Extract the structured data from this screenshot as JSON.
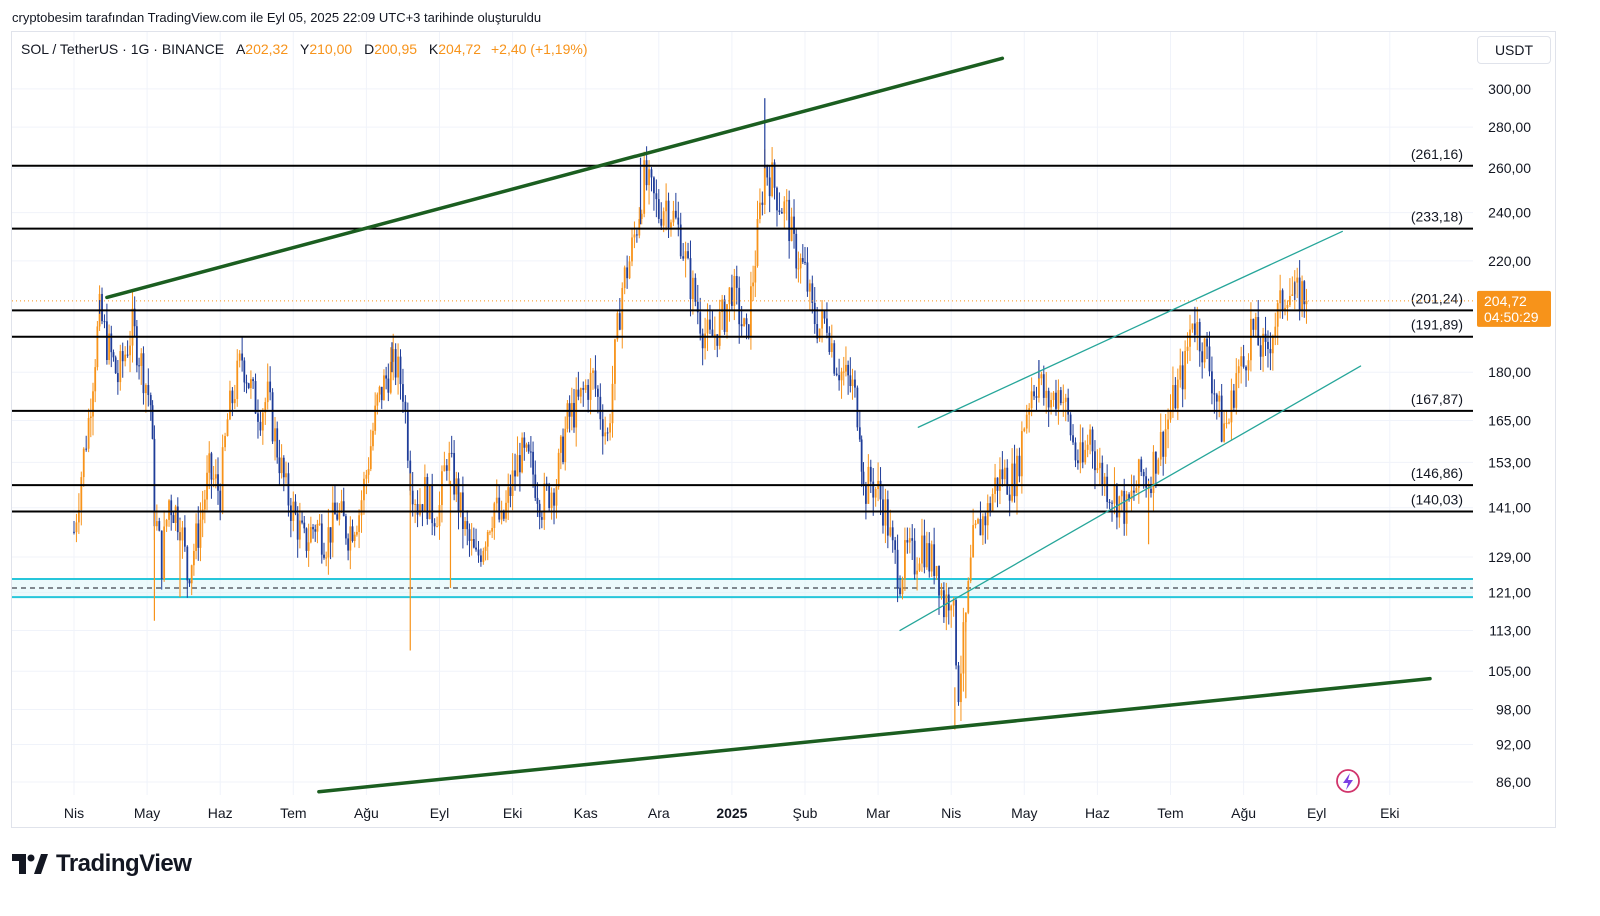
{
  "caption": "cryptobesim tarafından TradingView.com ile Eyl 05, 2025 22:09 UTC+3 tarihinde oluşturuldu",
  "legend": {
    "symbol": "SOL / TetherUS · 1G · BINANCE",
    "open_label": "A",
    "open": "202,32",
    "high_label": "Y",
    "high": "210,00",
    "low_label": "D",
    "low": "200,95",
    "close_label": "K",
    "close": "204,72",
    "change": "+2,40 (+1,19%)"
  },
  "currency": "USDT",
  "brand": "TradingView",
  "colors": {
    "up": "#f7931a",
    "down": "#1f3d99",
    "channel_outer": "#1b5e20",
    "channel_inner": "#26a69a",
    "support_zone": "#26c6da",
    "level": "#000000",
    "price_tag": "#f7931a"
  },
  "chart_data": {
    "type": "candlestick",
    "title": "SOL / TetherUS · 1G · BINANCE",
    "scale": "log",
    "ylim": [
      84,
      330
    ],
    "y_ticks": [
      "300,00",
      "280,00",
      "260,00",
      "240,00",
      "220,00",
      "180,00",
      "165,00",
      "153,00",
      "141,00",
      "129,00",
      "121,00",
      "113,00",
      "105,00",
      "98,00",
      "92,00",
      "86,00"
    ],
    "y_tick_values": [
      300,
      280,
      260,
      240,
      220,
      180,
      165,
      153,
      141,
      129,
      121,
      113,
      105,
      98,
      92,
      86
    ],
    "x_labels": [
      "Nis",
      "May",
      "Haz",
      "Tem",
      "Ağu",
      "Eyl",
      "Eki",
      "Kas",
      "Ara",
      "2025",
      "Şub",
      "Mar",
      "Nis",
      "May",
      "Haz",
      "Tem",
      "Ağu",
      "Eyl",
      "Eki"
    ],
    "x_label_months": [
      0,
      1,
      2,
      3,
      4,
      5,
      6,
      7,
      8,
      9,
      10,
      11,
      12,
      13,
      14,
      15,
      16,
      17,
      18
    ],
    "bold_x_label": "2025",
    "last_price": "204,72",
    "countdown": "04:50:29",
    "last_price_value": 204.72,
    "levels": [
      {
        "label": "(261,16)",
        "value": 261.16
      },
      {
        "label": "(233,18)",
        "value": 233.18
      },
      {
        "label": "(201,24)",
        "value": 201.24
      },
      {
        "label": "(191,89)",
        "value": 191.89
      },
      {
        "label": "(167,87)",
        "value": 167.87
      },
      {
        "label": "(146,86)",
        "value": 146.86
      },
      {
        "label": "(140,03)",
        "value": 140.03
      }
    ],
    "support_zone": {
      "top": 124.0,
      "bottom": 120.0,
      "mid": 122.0
    },
    "outer_channel": {
      "upper": [
        [
          0.45,
          206
        ],
        [
          12.7,
          317
        ]
      ],
      "lower": [
        [
          3.35,
          84.5
        ],
        [
          18.55,
          103.6
        ]
      ]
    },
    "inner_channel": {
      "upper": [
        [
          11.55,
          163
        ],
        [
          17.35,
          232
        ]
      ],
      "lower": [
        [
          11.3,
          113
        ],
        [
          17.6,
          182
        ]
      ]
    },
    "price_path": [
      [
        0.0,
        135
      ],
      [
        0.2,
        165
      ],
      [
        0.35,
        200
      ],
      [
        0.45,
        190
      ],
      [
        0.6,
        178
      ],
      [
        0.8,
        195
      ],
      [
        0.95,
        180
      ],
      [
        1.05,
        170
      ],
      [
        1.1,
        140
      ],
      [
        1.2,
        128
      ],
      [
        1.3,
        143
      ],
      [
        1.45,
        138
      ],
      [
        1.55,
        125
      ],
      [
        1.7,
        135
      ],
      [
        1.85,
        150
      ],
      [
        2.0,
        145
      ],
      [
        2.1,
        165
      ],
      [
        2.3,
        185
      ],
      [
        2.45,
        172
      ],
      [
        2.55,
        168
      ],
      [
        2.65,
        172
      ],
      [
        2.75,
        160
      ],
      [
        2.9,
        145
      ],
      [
        3.0,
        140
      ],
      [
        3.15,
        132
      ],
      [
        3.3,
        137
      ],
      [
        3.45,
        133
      ],
      [
        3.6,
        140
      ],
      [
        3.75,
        135
      ],
      [
        3.9,
        140
      ],
      [
        4.0,
        150
      ],
      [
        4.15,
        170
      ],
      [
        4.3,
        180
      ],
      [
        4.4,
        182
      ],
      [
        4.5,
        175
      ],
      [
        4.6,
        150
      ],
      [
        4.7,
        142
      ],
      [
        4.8,
        145
      ],
      [
        4.9,
        140
      ],
      [
        5.0,
        141
      ],
      [
        5.1,
        155
      ],
      [
        5.2,
        148
      ],
      [
        5.35,
        135
      ],
      [
        5.5,
        128
      ],
      [
        5.6,
        133
      ],
      [
        5.75,
        142
      ],
      [
        5.85,
        136
      ],
      [
        6.0,
        148
      ],
      [
        6.1,
        155
      ],
      [
        6.25,
        152
      ],
      [
        6.4,
        142
      ],
      [
        6.5,
        145
      ],
      [
        6.6,
        148
      ],
      [
        6.75,
        165
      ],
      [
        6.9,
        170
      ],
      [
        7.0,
        175
      ],
      [
        7.1,
        178
      ],
      [
        7.2,
        168
      ],
      [
        7.3,
        160
      ],
      [
        7.4,
        185
      ],
      [
        7.5,
        210
      ],
      [
        7.6,
        220
      ],
      [
        7.7,
        235
      ],
      [
        7.8,
        255
      ],
      [
        7.9,
        248
      ],
      [
        8.0,
        240
      ],
      [
        8.1,
        245
      ],
      [
        8.2,
        238
      ],
      [
        8.3,
        230
      ],
      [
        8.4,
        215
      ],
      [
        8.5,
        205
      ],
      [
        8.6,
        195
      ],
      [
        8.7,
        190
      ],
      [
        8.8,
        195
      ],
      [
        8.9,
        200
      ],
      [
        9.0,
        210
      ],
      [
        9.1,
        200
      ],
      [
        9.2,
        190
      ],
      [
        9.35,
        230
      ],
      [
        9.45,
        260
      ],
      [
        9.55,
        255
      ],
      [
        9.65,
        245
      ],
      [
        9.75,
        240
      ],
      [
        9.85,
        225
      ],
      [
        10.0,
        215
      ],
      [
        10.1,
        200
      ],
      [
        10.2,
        195
      ],
      [
        10.3,
        198
      ],
      [
        10.4,
        185
      ],
      [
        10.5,
        180
      ],
      [
        10.65,
        175
      ],
      [
        10.75,
        165
      ],
      [
        10.8,
        145
      ],
      [
        10.9,
        148
      ],
      [
        11.0,
        145
      ],
      [
        11.1,
        140
      ],
      [
        11.2,
        130
      ],
      [
        11.3,
        125
      ],
      [
        11.4,
        130
      ],
      [
        11.5,
        128
      ],
      [
        11.6,
        133
      ],
      [
        11.7,
        128
      ],
      [
        11.8,
        128
      ],
      [
        11.9,
        118
      ],
      [
        12.0,
        122
      ],
      [
        12.1,
        102
      ],
      [
        12.2,
        115
      ],
      [
        12.3,
        132
      ],
      [
        12.4,
        137
      ],
      [
        12.5,
        140
      ],
      [
        12.6,
        147
      ],
      [
        12.7,
        150
      ],
      [
        12.8,
        148
      ],
      [
        12.9,
        150
      ],
      [
        13.0,
        165
      ],
      [
        13.1,
        175
      ],
      [
        13.2,
        178
      ],
      [
        13.3,
        170
      ],
      [
        13.4,
        172
      ],
      [
        13.5,
        175
      ],
      [
        13.6,
        165
      ],
      [
        13.7,
        155
      ],
      [
        13.8,
        152
      ],
      [
        13.9,
        162
      ],
      [
        14.0,
        152
      ],
      [
        14.1,
        148
      ],
      [
        14.2,
        145
      ],
      [
        14.3,
        143
      ],
      [
        14.4,
        140
      ],
      [
        14.5,
        145
      ],
      [
        14.6,
        150
      ],
      [
        14.7,
        148
      ],
      [
        14.8,
        155
      ],
      [
        14.9,
        160
      ],
      [
        15.0,
        168
      ],
      [
        15.1,
        175
      ],
      [
        15.2,
        182
      ],
      [
        15.3,
        200
      ],
      [
        15.4,
        192
      ],
      [
        15.5,
        185
      ],
      [
        15.6,
        175
      ],
      [
        15.7,
        163
      ],
      [
        15.8,
        165
      ],
      [
        15.9,
        180
      ],
      [
        16.0,
        182
      ],
      [
        16.1,
        195
      ],
      [
        16.2,
        190
      ],
      [
        16.3,
        185
      ],
      [
        16.4,
        195
      ],
      [
        16.5,
        202
      ],
      [
        16.6,
        210
      ],
      [
        16.7,
        205
      ],
      [
        16.8,
        208
      ],
      [
        16.86,
        204.7
      ]
    ],
    "extremes": [
      [
        0.35,
        205,
        "high"
      ],
      [
        1.1,
        115,
        "low"
      ],
      [
        1.45,
        120,
        "low"
      ],
      [
        4.35,
        190,
        "high"
      ],
      [
        4.6,
        109,
        "low"
      ],
      [
        5.15,
        122,
        "low"
      ],
      [
        7.75,
        265,
        "high"
      ],
      [
        9.45,
        295,
        "high"
      ],
      [
        12.05,
        94.5,
        "low"
      ],
      [
        12.2,
        100,
        "low"
      ],
      [
        13.2,
        184,
        "high"
      ],
      [
        14.7,
        132,
        "low"
      ],
      [
        16.7,
        212,
        "high"
      ]
    ]
  }
}
